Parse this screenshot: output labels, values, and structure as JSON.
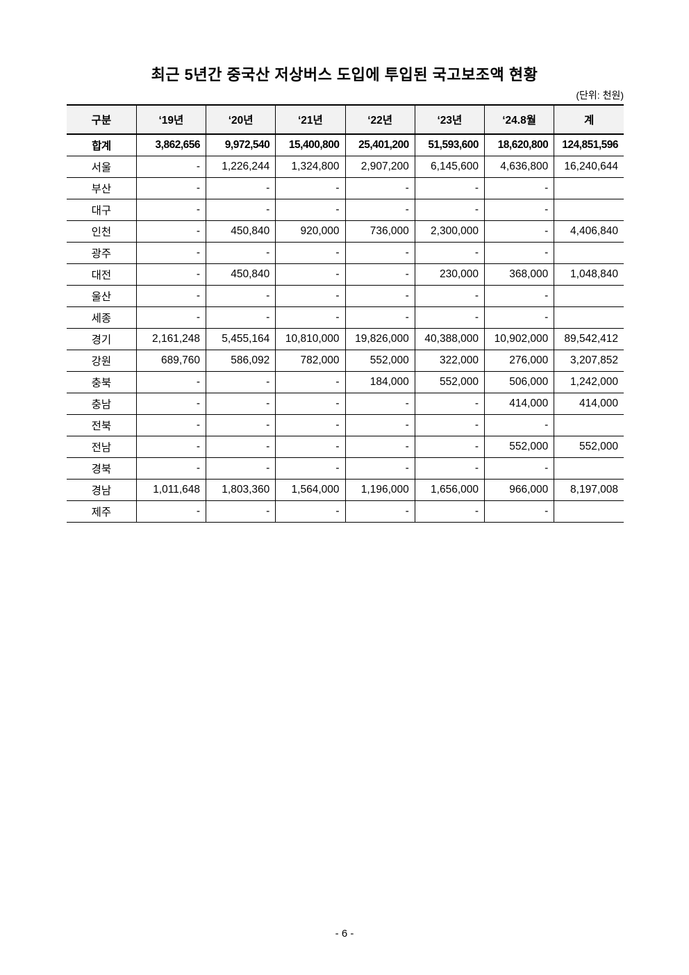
{
  "title": "최근 5년간 중국산 저상버스 도입에 투입된 국고보조액 현황",
  "unit": "(단위: 천원)",
  "table": {
    "headers": [
      "구분",
      "‘19년",
      "‘20년",
      "‘21년",
      "‘22년",
      "‘23년",
      "‘24.8월",
      "계"
    ],
    "rows": [
      [
        "합계",
        "3,862,656",
        "9,972,540",
        "15,400,800",
        "25,401,200",
        "51,593,600",
        "18,620,800",
        "124,851,596"
      ],
      [
        "서울",
        "-",
        "1,226,244",
        "1,324,800",
        "2,907,200",
        "6,145,600",
        "4,636,800",
        "16,240,644"
      ],
      [
        "부산",
        "-",
        "-",
        "-",
        "-",
        "-",
        "-",
        ""
      ],
      [
        "대구",
        "-",
        "-",
        "-",
        "-",
        "-",
        "-",
        ""
      ],
      [
        "인천",
        "-",
        "450,840",
        "920,000",
        "736,000",
        "2,300,000",
        "-",
        "4,406,840"
      ],
      [
        "광주",
        "-",
        "-",
        "-",
        "-",
        "-",
        "-",
        ""
      ],
      [
        "대전",
        "-",
        "450,840",
        "-",
        "-",
        "230,000",
        "368,000",
        "1,048,840"
      ],
      [
        "울산",
        "-",
        "-",
        "-",
        "-",
        "-",
        "-",
        ""
      ],
      [
        "세종",
        "-",
        "-",
        "-",
        "-",
        "-",
        "-",
        ""
      ],
      [
        "경기",
        "2,161,248",
        "5,455,164",
        "10,810,000",
        "19,826,000",
        "40,388,000",
        "10,902,000",
        "89,542,412"
      ],
      [
        "강원",
        "689,760",
        "586,092",
        "782,000",
        "552,000",
        "322,000",
        "276,000",
        "3,207,852"
      ],
      [
        "충북",
        "-",
        "-",
        "-",
        "184,000",
        "552,000",
        "506,000",
        "1,242,000"
      ],
      [
        "충남",
        "-",
        "-",
        "-",
        "-",
        "-",
        "414,000",
        "414,000"
      ],
      [
        "전북",
        "-",
        "-",
        "-",
        "-",
        "-",
        "-",
        ""
      ],
      [
        "전남",
        "-",
        "-",
        "-",
        "-",
        "-",
        "552,000",
        "552,000"
      ],
      [
        "경북",
        "-",
        "-",
        "-",
        "-",
        "-",
        "-",
        ""
      ],
      [
        "경남",
        "1,011,648",
        "1,803,360",
        "1,564,000",
        "1,196,000",
        "1,656,000",
        "966,000",
        "8,197,008"
      ],
      [
        "제주",
        "-",
        "-",
        "-",
        "-",
        "-",
        "-",
        ""
      ]
    ]
  },
  "page_number": "- 6 -"
}
